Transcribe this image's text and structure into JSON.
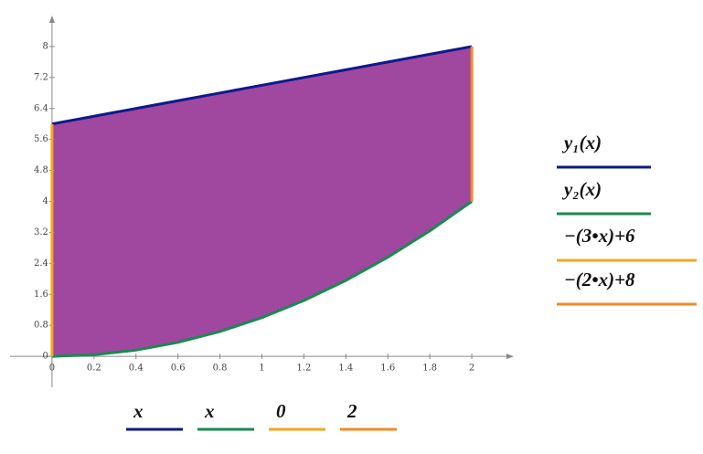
{
  "chart_data": {
    "type": "line",
    "series": [
      {
        "name": "y₁(x)",
        "x_label": "x",
        "color": "#0d1a8a",
        "x": [
          0,
          0.2,
          0.4,
          0.6,
          0.8,
          1,
          1.2,
          1.4,
          1.6,
          1.8,
          2
        ],
        "values": [
          6,
          6.2,
          6.4,
          6.6,
          6.8,
          7,
          7.2,
          7.4,
          7.6,
          7.8,
          8
        ]
      },
      {
        "name": "y₂(x)",
        "x_label": "x",
        "color": "#1a8a50",
        "x": [
          0,
          0.2,
          0.4,
          0.6,
          0.8,
          1,
          1.2,
          1.4,
          1.6,
          1.8,
          2
        ],
        "values": [
          0,
          0.04,
          0.16,
          0.36,
          0.64,
          1,
          1.44,
          1.96,
          2.56,
          3.24,
          4
        ]
      },
      {
        "name": "−(3•x)+6",
        "x_label": "0",
        "color": "#f5a623",
        "x": [
          0,
          0
        ],
        "values": [
          0,
          6
        ]
      },
      {
        "name": "−(2•x)+8",
        "x_label": "2",
        "color": "#f08a24",
        "x": [
          2,
          2
        ],
        "values": [
          4,
          8
        ]
      }
    ],
    "fill_color": "#a0479f",
    "xlim": [
      -0.2,
      2.2
    ],
    "ylim": [
      -0.8,
      8.8
    ],
    "xticks": [
      0,
      0.2,
      0.4,
      0.6,
      0.8,
      1,
      1.2,
      1.4,
      1.6,
      1.8,
      2
    ],
    "yticks": [
      0,
      0.8,
      1.6,
      2.4,
      3.2,
      4,
      4.8,
      5.6,
      6.4,
      7.2,
      8
    ]
  }
}
